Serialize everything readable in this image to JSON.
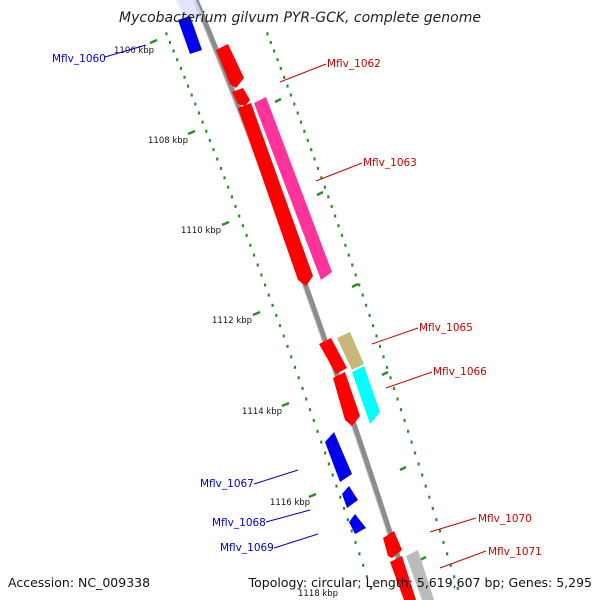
{
  "title": "Mycobacterium gilvum PYR-GCK, complete genome",
  "footer": {
    "accession": "Accession: NC_009338",
    "summary": "Topology: circular; Length: 5,619,607 bp; Genes: 5,295"
  },
  "ticks": [
    "1106 kbp",
    "1108 kbp",
    "1110 kbp",
    "1112 kbp",
    "1114 kbp",
    "1116 kbp",
    "1118 kbp"
  ],
  "labels": {
    "Mflv_1060": "Mflv_1060",
    "Mflv_1062": "Mflv_1062",
    "Mflv_1063": "Mflv_1063",
    "Mflv_1065": "Mflv_1065",
    "Mflv_1066": "Mflv_1066",
    "Mflv_1067": "Mflv_1067",
    "Mflv_1068": "Mflv_1068",
    "Mflv_1069": "Mflv_1069",
    "Mflv_1070": "Mflv_1070",
    "Mflv_1071": "Mflv_1071"
  },
  "colors": {
    "backbone": "#8c8c8c",
    "forward_gene": "#ff0000",
    "reverse_gene": "#0000ee",
    "magenta_gene": "#ff3399",
    "olive_gene": "#c8b878",
    "cyan_gene": "#00ffff",
    "grey_gene": "#bbbbbb",
    "tick_green": "#2e8b2e",
    "forward_label": "#cc0000",
    "reverse_label": "#0000cc"
  }
}
